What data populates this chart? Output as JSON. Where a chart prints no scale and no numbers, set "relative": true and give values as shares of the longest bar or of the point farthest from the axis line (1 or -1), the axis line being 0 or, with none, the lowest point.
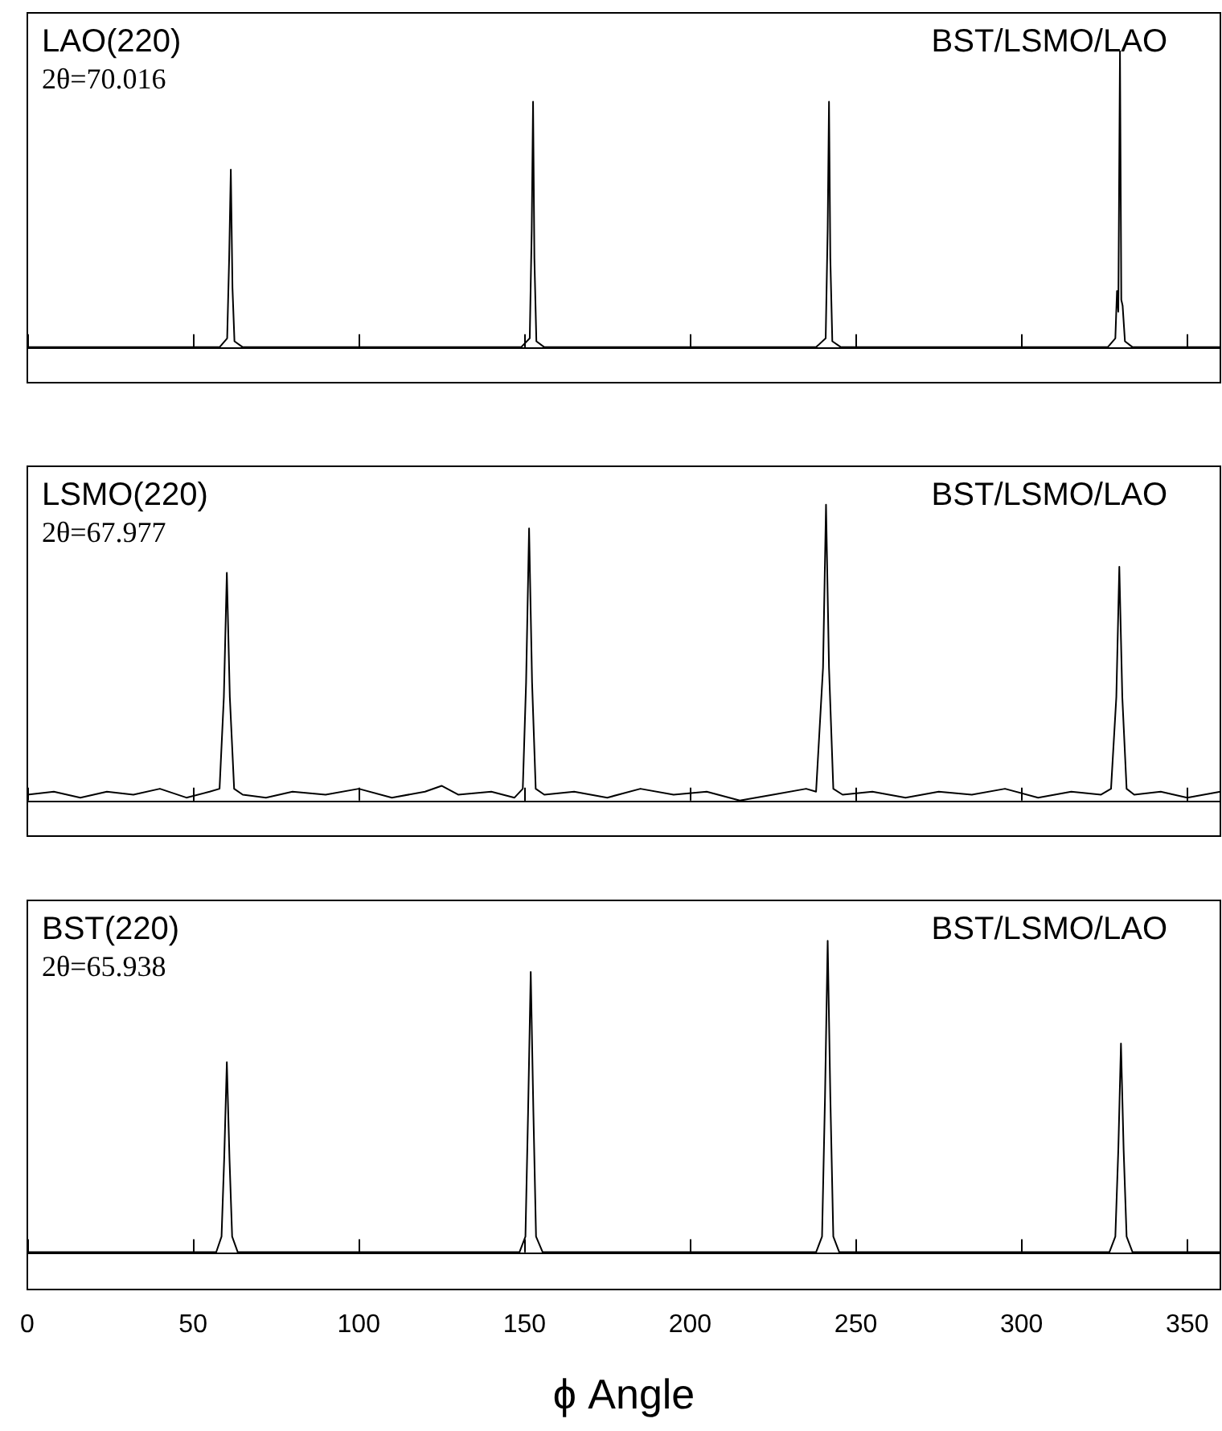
{
  "chart_data": [
    {
      "type": "line",
      "relative": true,
      "xlim": [
        0,
        360
      ],
      "xticks": [
        0,
        50,
        100,
        150,
        200,
        250,
        300,
        350
      ],
      "tick_labels": false,
      "grid": false,
      "annotations": [
        "LAO(220)",
        "2θ=70.016",
        "BST/LSMO/LAO"
      ],
      "series": [
        {
          "color": "#000000",
          "x": [
            0,
            40,
            58,
            60.3,
            60.9,
            61.4,
            61.9,
            62.5,
            65,
            100,
            149,
            151.6,
            152.2,
            152.6,
            153.0,
            153.6,
            156,
            200,
            238,
            240.9,
            241.5,
            241.9,
            242.3,
            242.9,
            245.5,
            290,
            326,
            328.3,
            328.8,
            329.2,
            329.7,
            330.1,
            330.5,
            331.2,
            333.5,
            360
          ],
          "values": [
            0,
            0,
            0,
            0.03,
            0.3,
            0.6,
            0.2,
            0.02,
            0,
            0,
            0,
            0.03,
            0.4,
            0.83,
            0.3,
            0.02,
            0,
            0,
            0,
            0.03,
            0.4,
            0.83,
            0.3,
            0.02,
            0,
            0,
            0,
            0.03,
            0.19,
            0.12,
            1,
            0.16,
            0.14,
            0.02,
            0,
            0
          ]
        }
      ]
    },
    {
      "type": "line",
      "relative": true,
      "xlim": [
        0,
        360
      ],
      "xticks": [
        0,
        50,
        100,
        150,
        200,
        250,
        300,
        350
      ],
      "tick_labels": false,
      "grid": false,
      "annotations": [
        "LSMO(220)",
        "2θ=67.977",
        "BST/LSMO/LAO"
      ],
      "series": [
        {
          "color": "#000000",
          "x": [
            0,
            8,
            16,
            24,
            32,
            40,
            48,
            55,
            58,
            59.3,
            60.2,
            61.1,
            62.4,
            65,
            72,
            80,
            90,
            100,
            110,
            120,
            125,
            130,
            140,
            147,
            149.5,
            150.5,
            151.4,
            152.3,
            153.4,
            156,
            165,
            175,
            185,
            195,
            205,
            215,
            225,
            235,
            238,
            240.1,
            241,
            241.9,
            243.2,
            246,
            255,
            265,
            275,
            285,
            295,
            305,
            315,
            324,
            327,
            328.6,
            329.5,
            330.4,
            331.7,
            334,
            342,
            350,
            360
          ],
          "values": [
            0.02,
            0.03,
            0.01,
            0.03,
            0.02,
            0.04,
            0.01,
            0.03,
            0.04,
            0.35,
            0.77,
            0.35,
            0.04,
            0.02,
            0.01,
            0.03,
            0.02,
            0.04,
            0.01,
            0.03,
            0.05,
            0.02,
            0.03,
            0.01,
            0.04,
            0.4,
            0.92,
            0.4,
            0.04,
            0.02,
            0.03,
            0.01,
            0.04,
            0.02,
            0.03,
            0,
            0.02,
            0.04,
            0.03,
            0.45,
            1,
            0.45,
            0.04,
            0.02,
            0.03,
            0.01,
            0.03,
            0.02,
            0.04,
            0.01,
            0.03,
            0.02,
            0.04,
            0.35,
            0.79,
            0.35,
            0.04,
            0.02,
            0.03,
            0.01,
            0.03
          ]
        }
      ]
    },
    {
      "type": "line",
      "relative": true,
      "xlim": [
        0,
        360
      ],
      "xticks": [
        0,
        50,
        100,
        150,
        200,
        250,
        300,
        350
      ],
      "tick_labels": "x",
      "grid": false,
      "xlabel": "ϕ Angle",
      "annotations": [
        "BST(220)",
        "2θ=65.938",
        "BST/LSMO/LAO"
      ],
      "series": [
        {
          "color": "#000000",
          "x": [
            0,
            30,
            57,
            58.6,
            59.4,
            60.2,
            61.0,
            61.8,
            63.5,
            100,
            148.5,
            150.3,
            151.1,
            151.9,
            152.7,
            153.5,
            155.5,
            200,
            238,
            239.8,
            240.7,
            241.5,
            242.3,
            243.2,
            245,
            290,
            326.5,
            328.3,
            329.2,
            330,
            330.8,
            331.7,
            333.5,
            360
          ],
          "values": [
            0,
            0,
            0,
            0.05,
            0.3,
            0.61,
            0.3,
            0.05,
            0,
            0,
            0,
            0.05,
            0.45,
            0.9,
            0.45,
            0.05,
            0,
            0,
            0,
            0.05,
            0.5,
            1,
            0.5,
            0.05,
            0,
            0,
            0,
            0.05,
            0.33,
            0.67,
            0.33,
            0.05,
            0,
            0
          ]
        }
      ]
    }
  ]
}
